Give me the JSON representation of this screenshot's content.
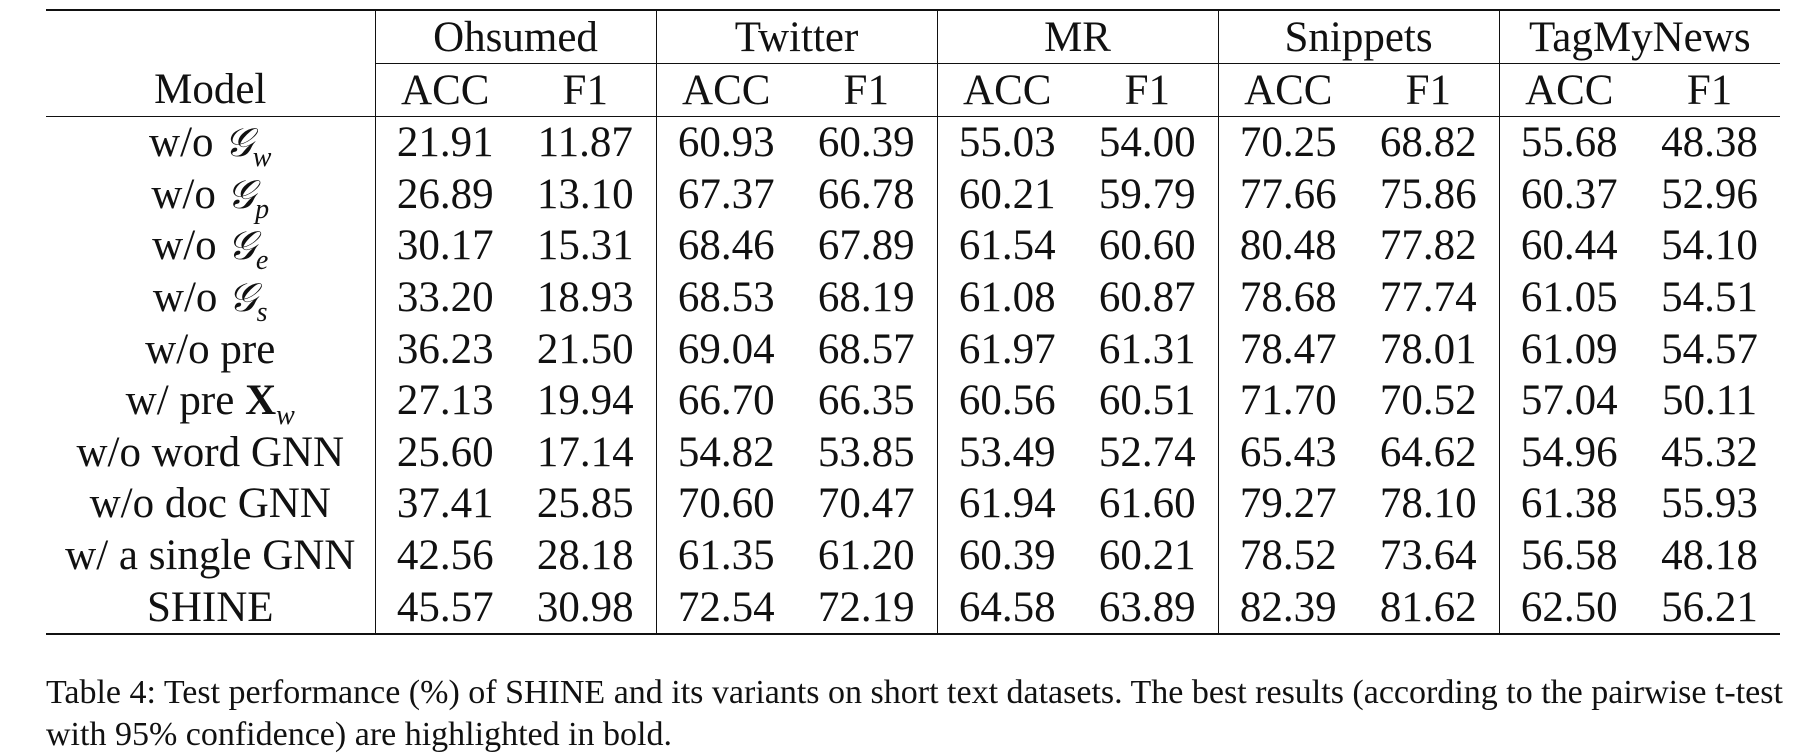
{
  "table": {
    "model_header": "Model",
    "datasets": [
      {
        "name": "Ohsumed",
        "metrics": [
          "ACC",
          "F1"
        ]
      },
      {
        "name": "Twitter",
        "metrics": [
          "ACC",
          "F1"
        ]
      },
      {
        "name": "MR",
        "metrics": [
          "ACC",
          "F1"
        ]
      },
      {
        "name": "Snippets",
        "metrics": [
          "ACC",
          "F1"
        ]
      },
      {
        "name": "TagMyNews",
        "metrics": [
          "ACC",
          "F1"
        ]
      }
    ],
    "rows": [
      {
        "model_prefix": "w/o",
        "model_symbol": "𝒢",
        "model_sub": "w",
        "model_text": "",
        "values": [
          "21.91",
          "11.87",
          "60.93",
          "60.39",
          "55.03",
          "54.00",
          "70.25",
          "68.82",
          "55.68",
          "48.38"
        ],
        "bold": false
      },
      {
        "model_prefix": "w/o",
        "model_symbol": "𝒢",
        "model_sub": "p",
        "model_text": "",
        "values": [
          "26.89",
          "13.10",
          "67.37",
          "66.78",
          "60.21",
          "59.79",
          "77.66",
          "75.86",
          "60.37",
          "52.96"
        ],
        "bold": false
      },
      {
        "model_prefix": "w/o",
        "model_symbol": "𝒢",
        "model_sub": "e",
        "model_text": "",
        "values": [
          "30.17",
          "15.31",
          "68.46",
          "67.89",
          "61.54",
          "60.60",
          "80.48",
          "77.82",
          "60.44",
          "54.10"
        ],
        "bold": false
      },
      {
        "model_prefix": "w/o",
        "model_symbol": "𝒢",
        "model_sub": "s",
        "model_text": "",
        "values": [
          "33.20",
          "18.93",
          "68.53",
          "68.19",
          "61.08",
          "60.87",
          "78.68",
          "77.74",
          "61.05",
          "54.51"
        ],
        "bold": false
      },
      {
        "model_prefix": "",
        "model_symbol": "",
        "model_sub": "",
        "model_text": "w/o pre",
        "values": [
          "36.23",
          "21.50",
          "69.04",
          "68.57",
          "61.97",
          "61.31",
          "78.47",
          "78.01",
          "61.09",
          "54.57"
        ],
        "bold": false
      },
      {
        "model_prefix": "w/ pre",
        "model_symbol": "X",
        "model_sub": "w",
        "model_text": "",
        "values": [
          "27.13",
          "19.94",
          "66.70",
          "66.35",
          "60.56",
          "60.51",
          "71.70",
          "70.52",
          "57.04",
          "50.11"
        ],
        "bold": false
      },
      {
        "model_prefix": "",
        "model_symbol": "",
        "model_sub": "",
        "model_text": "w/o word GNN",
        "values": [
          "25.60",
          "17.14",
          "54.82",
          "53.85",
          "53.49",
          "52.74",
          "65.43",
          "64.62",
          "54.96",
          "45.32"
        ],
        "bold": false
      },
      {
        "model_prefix": "",
        "model_symbol": "",
        "model_sub": "",
        "model_text": "w/o doc GNN",
        "values": [
          "37.41",
          "25.85",
          "70.60",
          "70.47",
          "61.94",
          "61.60",
          "79.27",
          "78.10",
          "61.38",
          "55.93"
        ],
        "bold": false
      },
      {
        "model_prefix": "",
        "model_symbol": "",
        "model_sub": "",
        "model_text": "w/ a single GNN",
        "values": [
          "42.56",
          "28.18",
          "61.35",
          "61.20",
          "60.39",
          "60.21",
          "78.52",
          "73.64",
          "56.58",
          "48.18"
        ],
        "bold": false
      },
      {
        "model_prefix": "",
        "model_symbol": "",
        "model_sub": "",
        "model_text": "SHINE",
        "values": [
          "45.57",
          "30.98",
          "72.54",
          "72.19",
          "64.58",
          "63.89",
          "82.39",
          "81.62",
          "62.50",
          "56.21"
        ],
        "bold": true
      }
    ]
  },
  "caption": "Table 4: Test performance (%) of SHINE and its variants on short text datasets. The best results (according to the pairwise t-test with 95% confidence) are highlighted in bold."
}
